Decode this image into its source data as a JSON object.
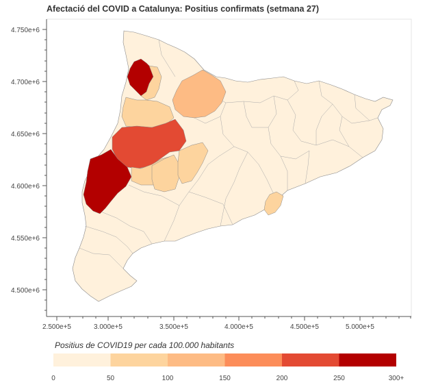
{
  "title": "Afectació del COVID a Catalunya: Positius confirmats (setmana 27)",
  "y_ticks": [
    "4.750e+6",
    "4.700e+6",
    "4.650e+6",
    "4.600e+6",
    "4.550e+6",
    "4.500e+6"
  ],
  "x_ticks": [
    "2.500e+5",
    "3.000e+5",
    "3.500e+5",
    "4.000e+5",
    "4.500e+5",
    "5.000e+5"
  ],
  "legend": {
    "title": "Positius de COVID19 per cada 100.000 habitants",
    "labels": [
      "0",
      "50",
      "100",
      "150",
      "200",
      "250",
      "300+"
    ],
    "colors": [
      "#fff1dc",
      "#fdd49e",
      "#fdbb84",
      "#fc8d59",
      "#e34a33",
      "#b30000"
    ]
  },
  "colors": {
    "outline": "#888888",
    "frame": "#e5e5e5",
    "base_fill": "#fff1dc"
  }
}
